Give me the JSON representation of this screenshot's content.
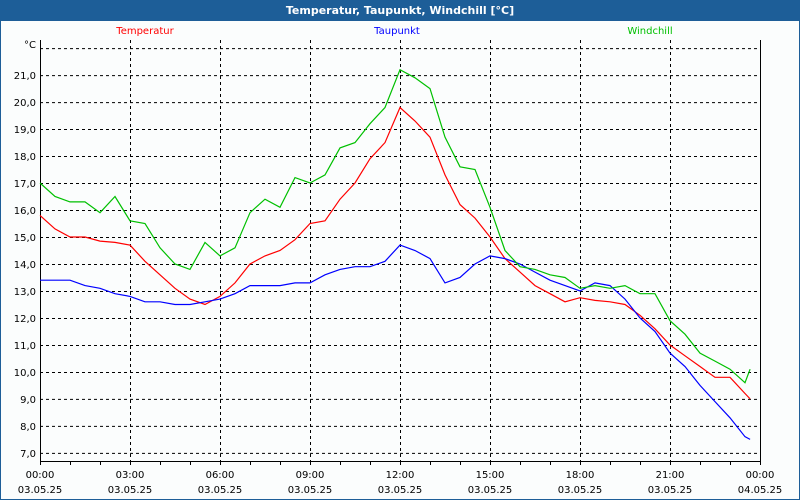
{
  "window": {
    "title": "Temperatur, Taupunkt, Windchill [°C]"
  },
  "chart_data": {
    "type": "line",
    "title": "Temperatur, Taupunkt, Windchill [°C]",
    "ylabel": "°C",
    "xlabel": "",
    "ylim": [
      6.7,
      22.3
    ],
    "xlim": [
      0,
      24
    ],
    "grid": true,
    "legend_placement": "top",
    "y_ticks": [
      {
        "value": 7,
        "label": "7,0"
      },
      {
        "value": 8,
        "label": "8,0"
      },
      {
        "value": 9,
        "label": "9,0"
      },
      {
        "value": 10,
        "label": "10,0"
      },
      {
        "value": 11,
        "label": "11,0"
      },
      {
        "value": 12,
        "label": "12,0"
      },
      {
        "value": 13,
        "label": "13,0"
      },
      {
        "value": 14,
        "label": "14,0"
      },
      {
        "value": 15,
        "label": "15,0"
      },
      {
        "value": 16,
        "label": "16,0"
      },
      {
        "value": 17,
        "label": "17,0"
      },
      {
        "value": 18,
        "label": "18,0"
      },
      {
        "value": 19,
        "label": "19,0"
      },
      {
        "value": 20,
        "label": "20,0"
      },
      {
        "value": 21,
        "label": "21,0"
      }
    ],
    "x_ticks": [
      {
        "value": 0,
        "time": "00:00",
        "date": "03.05.25"
      },
      {
        "value": 3,
        "time": "03:00",
        "date": "03.05.25"
      },
      {
        "value": 6,
        "time": "06:00",
        "date": "03.05.25"
      },
      {
        "value": 9,
        "time": "09:00",
        "date": "03.05.25"
      },
      {
        "value": 12,
        "time": "12:00",
        "date": "03.05.25"
      },
      {
        "value": 15,
        "time": "15:00",
        "date": "03.05.25"
      },
      {
        "value": 18,
        "time": "18:00",
        "date": "03.05.25"
      },
      {
        "value": 21,
        "time": "21:00",
        "date": "03.05.25"
      },
      {
        "value": 24,
        "time": "00:00",
        "date": "04.05.25"
      }
    ],
    "x": [
      0,
      0.5,
      1,
      1.5,
      2,
      2.5,
      3,
      3.5,
      4,
      4.5,
      5,
      5.5,
      6,
      6.5,
      7,
      7.5,
      8,
      8.5,
      9,
      9.5,
      10,
      10.5,
      11,
      11.5,
      12,
      12.5,
      13,
      13.5,
      14,
      14.5,
      15,
      15.5,
      16,
      16.5,
      17,
      17.5,
      18,
      18.5,
      19,
      19.5,
      20,
      20.5,
      21,
      21.5,
      22,
      22.5,
      23,
      23.5,
      23.67
    ],
    "series": [
      {
        "name": "Temperatur",
        "color": "#ff0000",
        "values": [
          15.8,
          15.3,
          15.0,
          15.0,
          14.85,
          14.8,
          14.7,
          14.1,
          13.6,
          13.1,
          12.7,
          12.5,
          12.8,
          13.3,
          14.0,
          14.3,
          14.5,
          14.9,
          15.5,
          15.6,
          16.4,
          17.0,
          17.9,
          18.5,
          19.8,
          19.3,
          18.7,
          17.3,
          16.2,
          15.7,
          15.0,
          14.2,
          13.7,
          13.2,
          12.9,
          12.6,
          12.75,
          12.65,
          12.6,
          12.5,
          12.1,
          11.6,
          11.0,
          10.6,
          10.2,
          9.8,
          9.8,
          9.2,
          9.0
        ]
      },
      {
        "name": "Taupunkt",
        "color": "#0000ff",
        "values": [
          13.4,
          13.4,
          13.4,
          13.2,
          13.1,
          12.9,
          12.8,
          12.6,
          12.6,
          12.5,
          12.5,
          12.6,
          12.7,
          12.9,
          13.2,
          13.2,
          13.2,
          13.3,
          13.3,
          13.6,
          13.8,
          13.9,
          13.9,
          14.1,
          14.7,
          14.5,
          14.2,
          13.3,
          13.5,
          14.0,
          14.3,
          14.2,
          14.0,
          13.7,
          13.4,
          13.2,
          13.0,
          13.3,
          13.2,
          12.7,
          12.0,
          11.5,
          10.7,
          10.2,
          9.5,
          8.9,
          8.3,
          7.6,
          7.5
        ]
      },
      {
        "name": "Windchill",
        "color": "#00c000",
        "values": [
          17.0,
          16.5,
          16.3,
          16.3,
          15.9,
          16.5,
          15.6,
          15.5,
          14.6,
          14.0,
          13.8,
          14.8,
          14.3,
          14.6,
          15.9,
          16.4,
          16.1,
          17.2,
          17.0,
          17.3,
          18.3,
          18.5,
          19.2,
          19.8,
          21.2,
          20.9,
          20.5,
          18.7,
          17.6,
          17.5,
          16.1,
          14.5,
          13.9,
          13.8,
          13.6,
          13.5,
          13.1,
          13.2,
          13.1,
          13.2,
          12.9,
          12.9,
          11.9,
          11.4,
          10.7,
          10.4,
          10.1,
          9.6,
          10.1
        ]
      }
    ]
  }
}
